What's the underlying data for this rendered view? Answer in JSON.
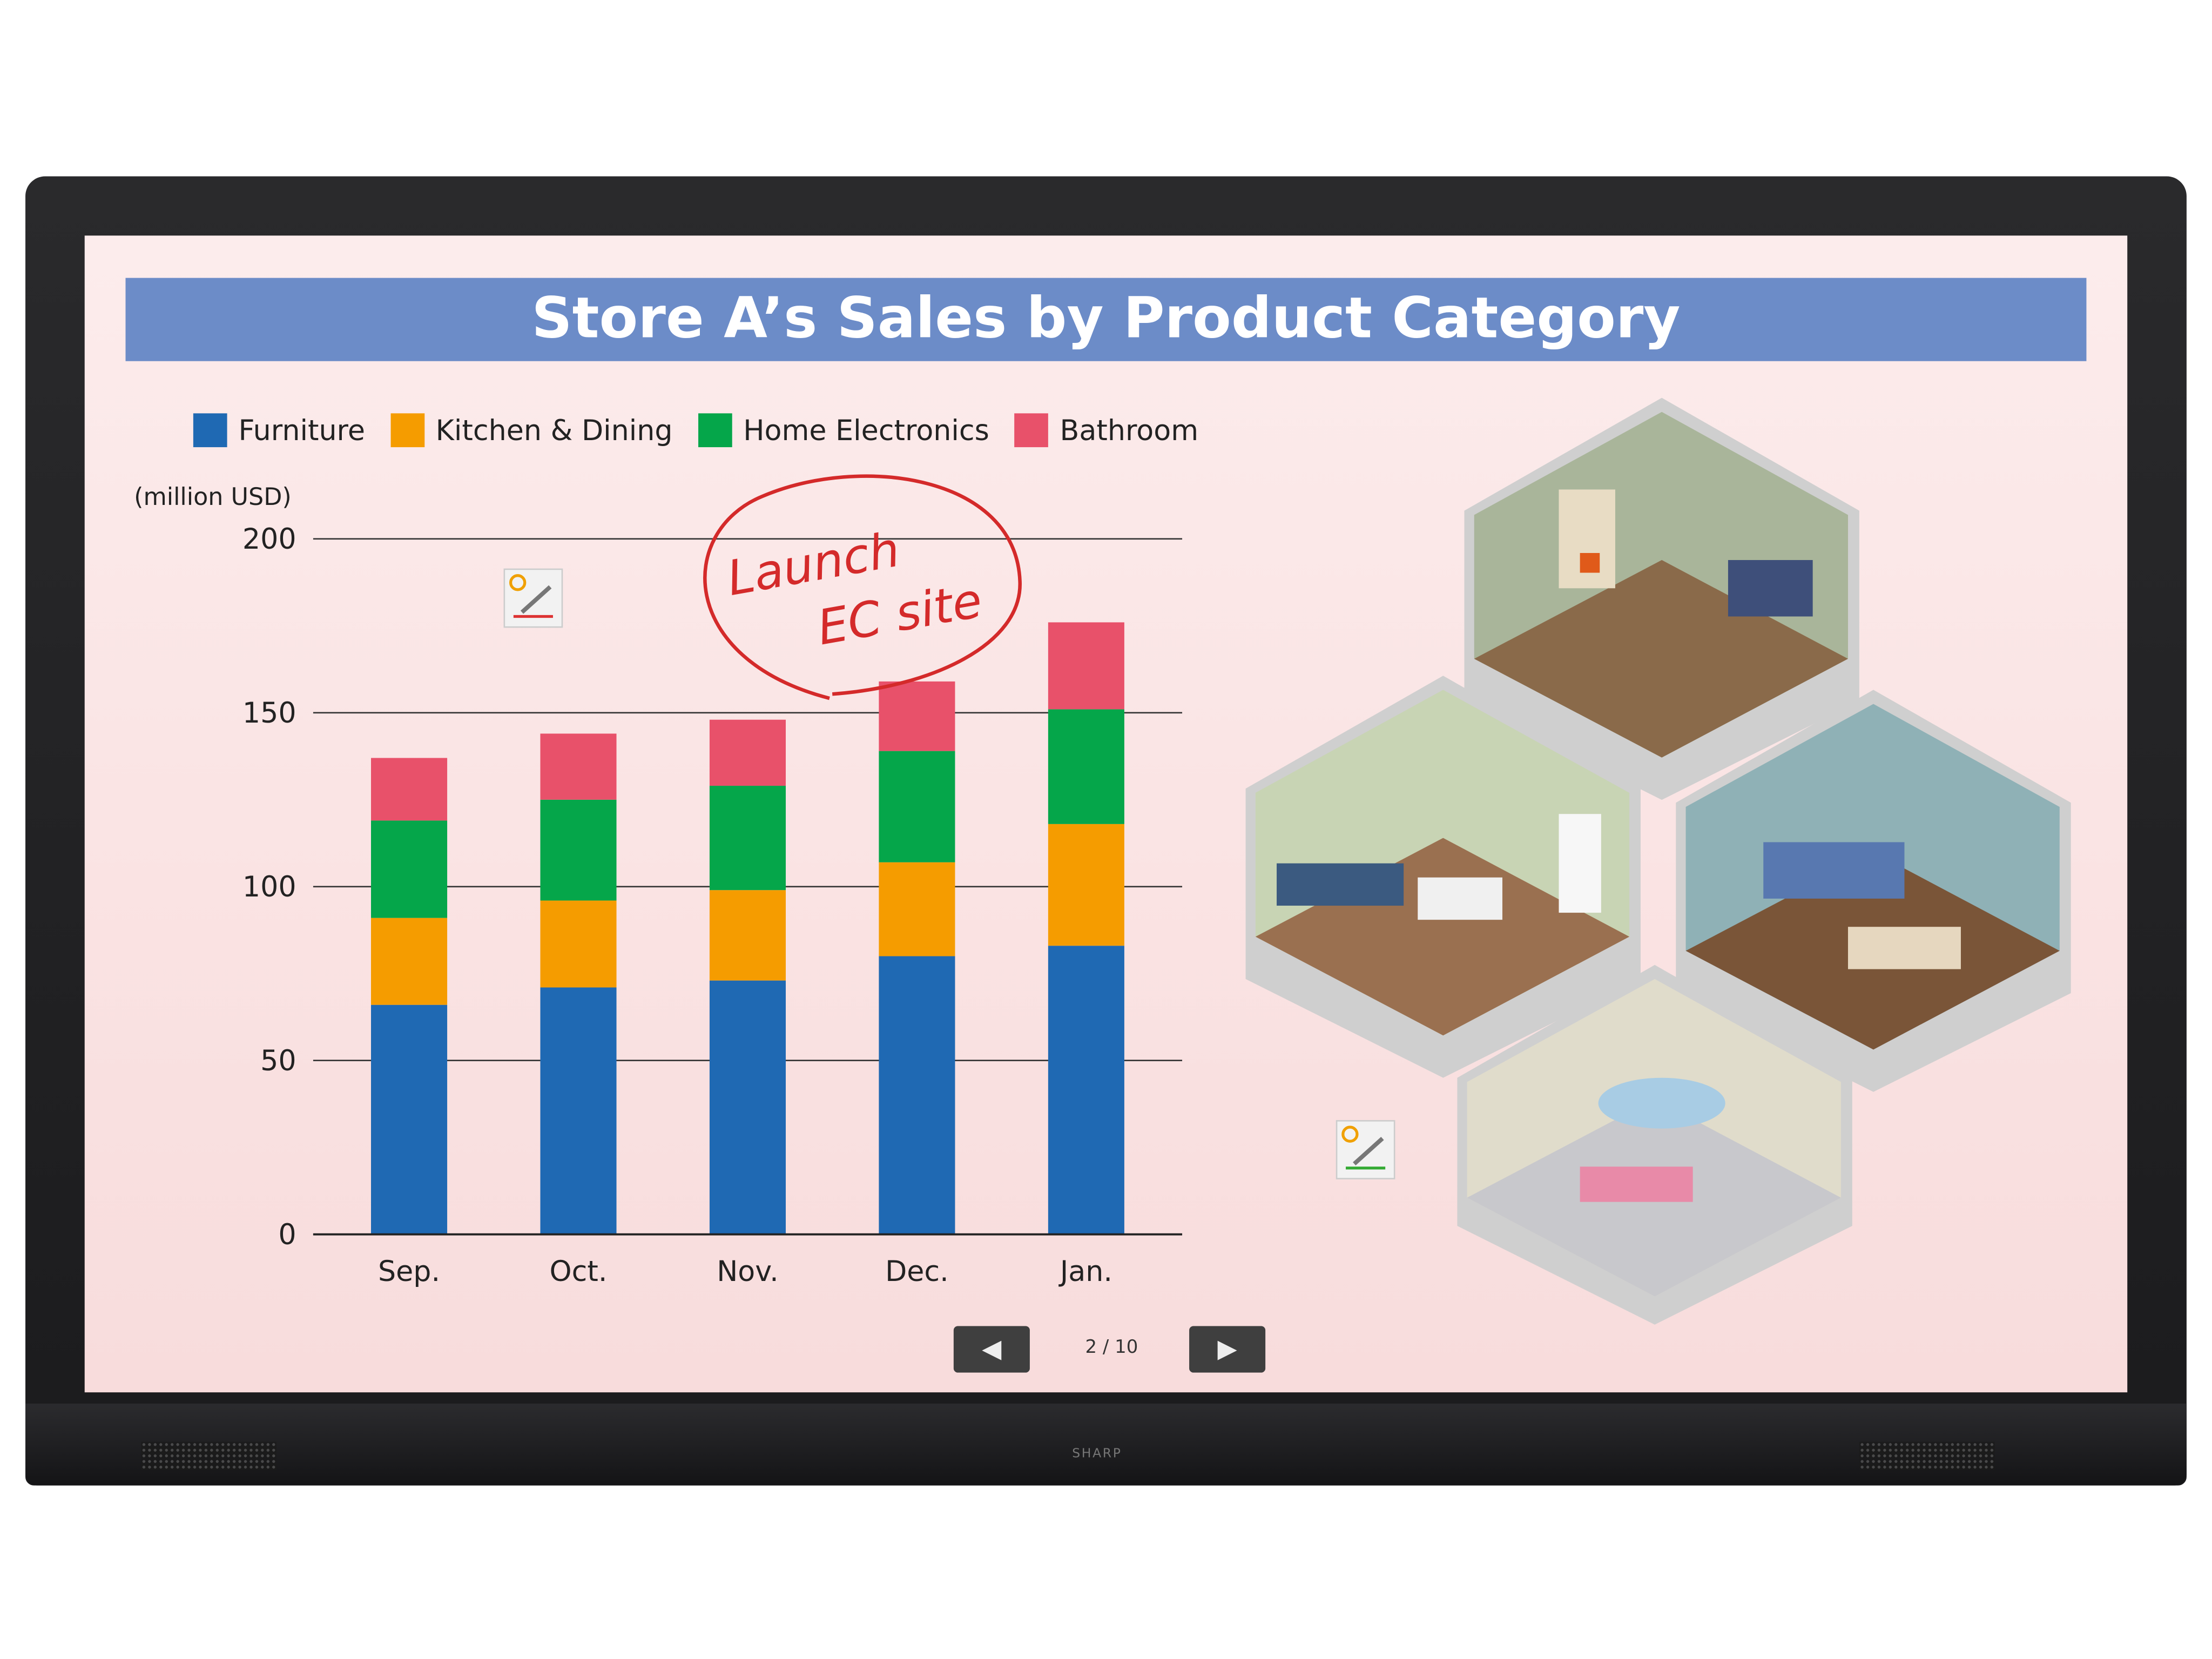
{
  "device": {
    "logo": "SHARP"
  },
  "slide": {
    "title": "Store A’s Sales by Product Category",
    "annotation": {
      "line1": "Launch",
      "line2": "EC site",
      "color": "#d42a2a"
    },
    "page_indicator": "2 / 10",
    "prev_icon": "triangle-left-icon",
    "next_icon": "triangle-right-icon"
  },
  "chart_data": {
    "type": "bar",
    "stacked": true,
    "title": "Store A’s Sales by Product Category",
    "ylabel": "(million USD)",
    "xlabel": "",
    "categories": [
      "Sep.",
      "Oct.",
      "Nov.",
      "Dec.",
      "Jan."
    ],
    "ylim": [
      0,
      200
    ],
    "yticks": [
      0,
      50,
      100,
      150,
      200
    ],
    "grid": true,
    "legend_position": "top-left",
    "series": [
      {
        "name": "Furniture",
        "color": "#1f69b3",
        "values": [
          66,
          71,
          73,
          80,
          83
        ]
      },
      {
        "name": "Kitchen & Dining",
        "color": "#f59c00",
        "values": [
          25,
          25,
          26,
          27,
          35
        ]
      },
      {
        "name": "Home Electronics",
        "color": "#05a64a",
        "values": [
          28,
          29,
          30,
          32,
          33
        ]
      },
      {
        "name": "Bathroom",
        "color": "#e8516a",
        "values": [
          18,
          19,
          19,
          20,
          25
        ]
      }
    ]
  }
}
